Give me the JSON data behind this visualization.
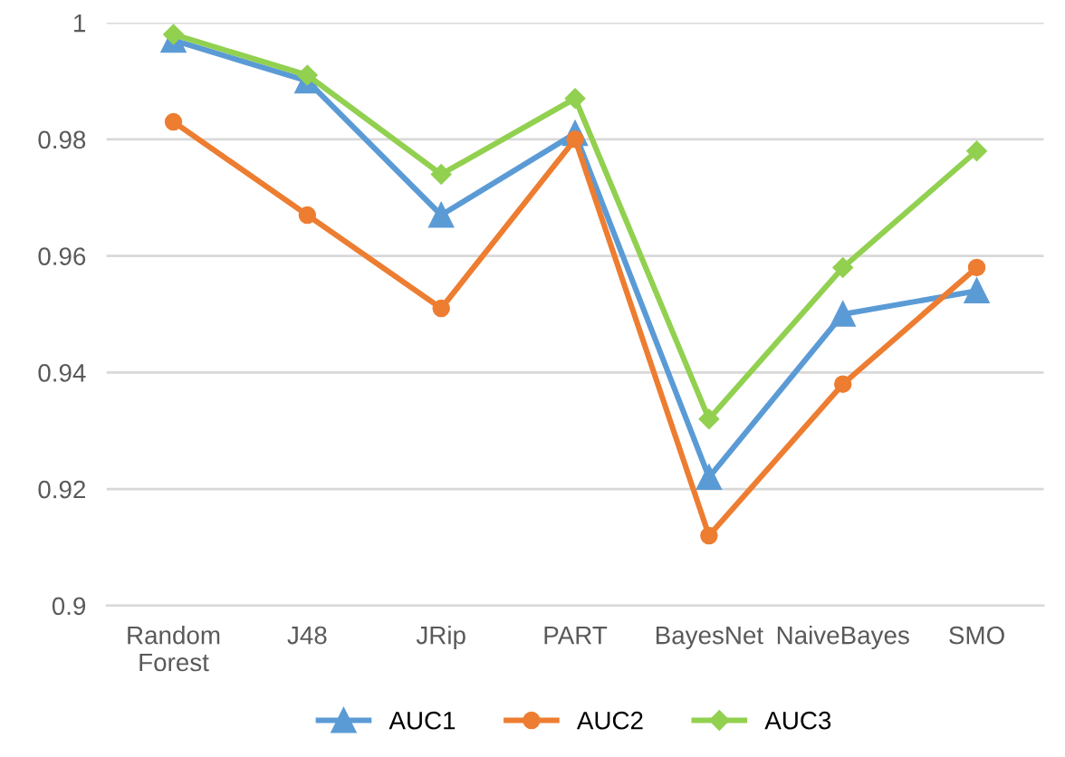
{
  "chart_data": {
    "type": "line",
    "categories": [
      "Random\nForest",
      "J48",
      "JRip",
      "PART",
      "BayesNet",
      "NaiveBayes",
      "SMO"
    ],
    "series": [
      {
        "name": "AUC1",
        "color": "#5b9bd5",
        "marker": "triangle",
        "values": [
          0.997,
          0.99,
          0.967,
          0.981,
          0.922,
          0.95,
          0.954
        ]
      },
      {
        "name": "AUC2",
        "color": "#ed7d31",
        "marker": "circle",
        "values": [
          0.983,
          0.967,
          0.951,
          0.98,
          0.912,
          0.938,
          0.958
        ]
      },
      {
        "name": "AUC3",
        "color": "#92d050",
        "marker": "diamond",
        "values": [
          0.998,
          0.991,
          0.974,
          0.987,
          0.932,
          0.958,
          0.978
        ]
      }
    ],
    "ylim": [
      0.9,
      1
    ],
    "yticks": [
      0.9,
      0.92,
      0.94,
      0.96,
      0.98,
      1
    ],
    "grid": "y",
    "legend": "bottom"
  }
}
